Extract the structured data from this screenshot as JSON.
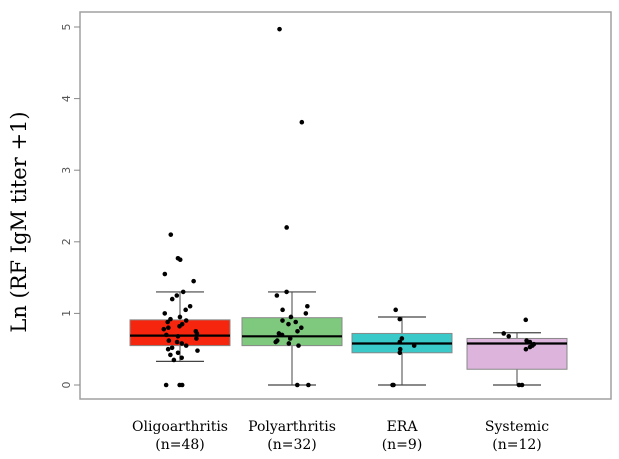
{
  "chart_data": {
    "type": "boxplot",
    "title": "",
    "xlabel": "",
    "ylabel": "Ln (RF  IgM titer +1)",
    "ylim": [
      -0.15,
      5.15
    ],
    "yticks": [
      "0",
      "1",
      "2",
      "3",
      "4",
      "5"
    ],
    "grid": false,
    "legend": "none",
    "groups": [
      {
        "name": "Oligoarthritis",
        "n_label": "(n=48)",
        "color": "#f5260d",
        "box": {
          "min": 0.33,
          "q1": 0.55,
          "median": 0.69,
          "q3": 0.91,
          "max": 1.3
        },
        "points": [
          0,
          0,
          0,
          2.1,
          1.77,
          1.75,
          1.55,
          1.45,
          1.3,
          1.25,
          1.2,
          1.1,
          1.05,
          1.0,
          0.95,
          0.92,
          0.9,
          0.88,
          0.85,
          0.82,
          0.8,
          0.78,
          0.75,
          0.72,
          0.7,
          0.68,
          0.65,
          0.62,
          0.6,
          0.58,
          0.55,
          0.52,
          0.5,
          0.48,
          0.45,
          0.42,
          0.38,
          0.35
        ]
      },
      {
        "name": "Polyarthritis",
        "n_label": "(n=32)",
        "color": "#7fc97f",
        "box": {
          "min": 0.0,
          "q1": 0.55,
          "median": 0.68,
          "q3": 0.94,
          "max": 1.3
        },
        "points": [
          4.97,
          3.67,
          2.2,
          1.3,
          1.25,
          1.1,
          1.05,
          1.0,
          0.95,
          0.9,
          0.88,
          0.85,
          0.8,
          0.75,
          0.72,
          0.7,
          0.65,
          0.62,
          0.6,
          0.58,
          0.55,
          0.0,
          0.0
        ]
      },
      {
        "name": "ERA",
        "n_label": "(n=9)",
        "color": "#39c9c9",
        "box": {
          "min": 0.0,
          "q1": 0.45,
          "median": 0.58,
          "q3": 0.72,
          "max": 0.95
        },
        "points": [
          1.05,
          0.92,
          0.65,
          0.6,
          0.55,
          0.5,
          0.45,
          0.0,
          0.0
        ]
      },
      {
        "name": "Systemic",
        "n_label": "(n=12)",
        "color": "#dcb4dc",
        "box": {
          "min": 0.0,
          "q1": 0.22,
          "median": 0.58,
          "q3": 0.65,
          "max": 0.73
        },
        "points": [
          0.91,
          0.72,
          0.68,
          0.62,
          0.6,
          0.57,
          0.55,
          0.53,
          0.5,
          0.0,
          0.0
        ]
      }
    ]
  }
}
